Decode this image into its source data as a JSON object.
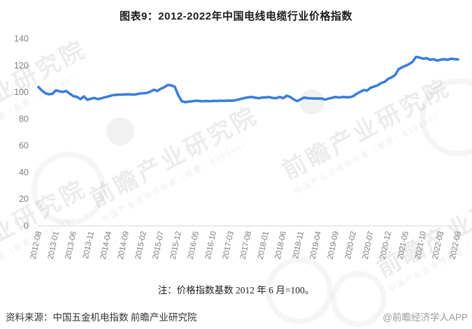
{
  "title": "图表9：2012-2022年中国电线电缆行业价格指数",
  "note": "注：价格指数基数 2012 年 6 月=100。",
  "footer": {
    "source": "资料来源：中国五金机电指数 前瞻产业研究院",
    "handle": "@前瞻经济学人APP"
  },
  "watermark": {
    "brand": "前瞻产业研究院",
    "subtitle": "中国产业咨询领导者（股票：839599）"
  },
  "colors": {
    "line": "#3b7ddd",
    "axis_line": "#d9d9d9",
    "tick_text": "#7f7f7f",
    "title_text": "#1a1a1a"
  },
  "chart_data": {
    "type": "line",
    "title": "图表9：2012-2022年中国电线电缆行业价格指数",
    "xlabel": "",
    "ylabel": "",
    "ylim": [
      0,
      140
    ],
    "y_ticks": [
      0,
      20,
      40,
      60,
      80,
      100,
      120,
      140
    ],
    "grid": false,
    "legend": "none",
    "x_tick_labels": [
      "2012-08",
      "2013-01",
      "2013-06",
      "2013-11",
      "2014-04",
      "2014-09",
      "2015-02",
      "2015-07",
      "2015-12",
      "2016-05",
      "2016-10",
      "2017-03",
      "2017-08",
      "2018-01",
      "2018-06",
      "2018-11",
      "2019-04",
      "2019-09",
      "2020-02",
      "2020-07",
      "2020-12",
      "2021-05",
      "2021-10",
      "2022-03",
      "2022-08"
    ],
    "series": [
      {
        "name": "中国电线电缆行业价格指数",
        "months": [
          "2012-08",
          "2012-09",
          "2012-10",
          "2012-11",
          "2012-12",
          "2013-01",
          "2013-02",
          "2013-03",
          "2013-04",
          "2013-05",
          "2013-06",
          "2013-07",
          "2013-08",
          "2013-09",
          "2013-10",
          "2013-11",
          "2013-12",
          "2014-01",
          "2014-02",
          "2014-03",
          "2014-04",
          "2014-05",
          "2014-06",
          "2014-07",
          "2014-08",
          "2014-09",
          "2014-10",
          "2014-11",
          "2014-12",
          "2015-01",
          "2015-02",
          "2015-03",
          "2015-04",
          "2015-05",
          "2015-06",
          "2015-07",
          "2015-08",
          "2015-09",
          "2015-10",
          "2015-11",
          "2015-12",
          "2016-01",
          "2016-02",
          "2016-03",
          "2016-04",
          "2016-05",
          "2016-06",
          "2016-07",
          "2016-08",
          "2016-09",
          "2016-10",
          "2016-11",
          "2016-12",
          "2017-01",
          "2017-02",
          "2017-03",
          "2017-04",
          "2017-05",
          "2017-06",
          "2017-07",
          "2017-08",
          "2017-09",
          "2017-10",
          "2017-11",
          "2017-12",
          "2018-01",
          "2018-02",
          "2018-03",
          "2018-04",
          "2018-05",
          "2018-06",
          "2018-07",
          "2018-08",
          "2018-09",
          "2018-10",
          "2018-11",
          "2018-12",
          "2019-01",
          "2019-02",
          "2019-03",
          "2019-04",
          "2019-05",
          "2019-06",
          "2019-07",
          "2019-08",
          "2019-09",
          "2019-10",
          "2019-11",
          "2019-12",
          "2020-01",
          "2020-02",
          "2020-03",
          "2020-04",
          "2020-05",
          "2020-06",
          "2020-07",
          "2020-08",
          "2020-09",
          "2020-10",
          "2020-11",
          "2020-12",
          "2021-01",
          "2021-02",
          "2021-03",
          "2021-04",
          "2021-05",
          "2021-06",
          "2021-07",
          "2021-08",
          "2021-09",
          "2021-10",
          "2021-11",
          "2021-12",
          "2022-01",
          "2022-02",
          "2022-03",
          "2022-04",
          "2022-05",
          "2022-06",
          "2022-07",
          "2022-08"
        ],
        "values": [
          103.6,
          101.0,
          99.0,
          98.2,
          98.6,
          101.2,
          100.4,
          100.0,
          100.6,
          98.6,
          96.8,
          96.3,
          94.6,
          96.6,
          94.1,
          94.9,
          95.5,
          94.6,
          95.2,
          96.0,
          96.6,
          97.4,
          97.8,
          98.0,
          98.0,
          98.1,
          98.2,
          98.0,
          98.2,
          98.8,
          99.0,
          99.2,
          100.2,
          101.6,
          100.7,
          102.4,
          103.5,
          105.2,
          104.9,
          103.8,
          97.5,
          93.0,
          92.3,
          92.8,
          93.0,
          93.4,
          93.2,
          93.0,
          93.2,
          93.0,
          93.3,
          93.2,
          93.4,
          93.3,
          93.5,
          93.4,
          93.6,
          94.2,
          94.8,
          95.5,
          95.9,
          96.2,
          95.7,
          95.3,
          95.8,
          95.9,
          96.1,
          95.5,
          95.3,
          96.2,
          95.3,
          97.1,
          96.2,
          94.4,
          93.1,
          94.5,
          95.8,
          95.3,
          95.2,
          95.0,
          95.0,
          95.1,
          94.2,
          95.0,
          95.6,
          96.2,
          95.8,
          96.2,
          96.0,
          96.0,
          96.8,
          98.6,
          100.0,
          101.4,
          101.0,
          103.1,
          104.0,
          104.9,
          106.6,
          107.5,
          109.7,
          110.9,
          112.5,
          117.0,
          118.4,
          119.6,
          120.8,
          122.5,
          126.2,
          125.7,
          124.8,
          125.2,
          124.0,
          124.5,
          123.4,
          124.0,
          124.5,
          124.0,
          124.8,
          124.5,
          124.3
        ]
      }
    ]
  }
}
